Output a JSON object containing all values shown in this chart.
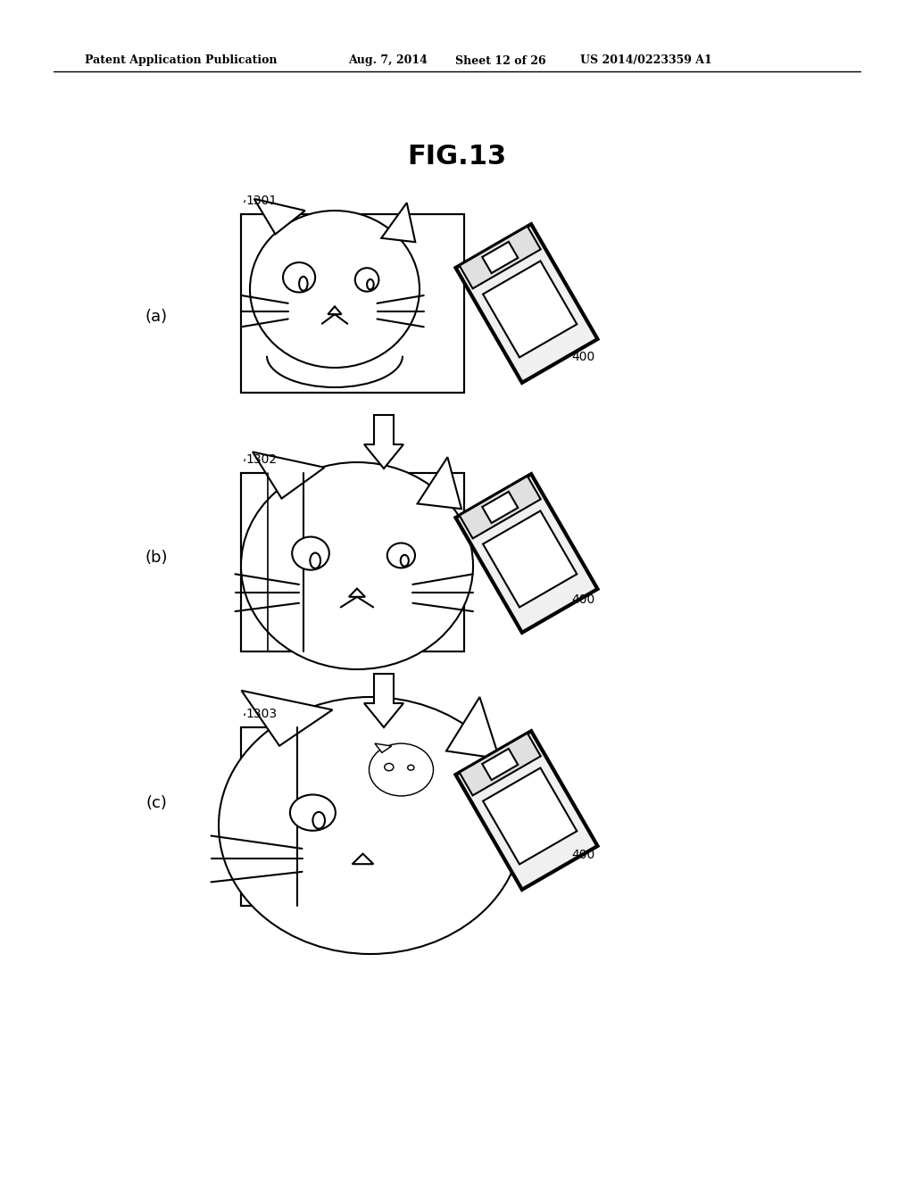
{
  "bg_color": "#ffffff",
  "header_text": "Patent Application Publication",
  "header_date": "Aug. 7, 2014",
  "header_sheet": "Sheet 12 of 26",
  "header_patent": "US 2014/0223359 A1",
  "title": "FIG.13",
  "label_a": "(a)",
  "label_b": "(b)",
  "label_c": "(c)",
  "label_1301": "1301",
  "label_1302": "1302",
  "label_1303": "1303",
  "label_400": "400",
  "text_color": "#000000",
  "line_color": "#000000",
  "line_width": 1.5,
  "arrow_fill": "#ffffff",
  "arrow_stroke": "#000000"
}
